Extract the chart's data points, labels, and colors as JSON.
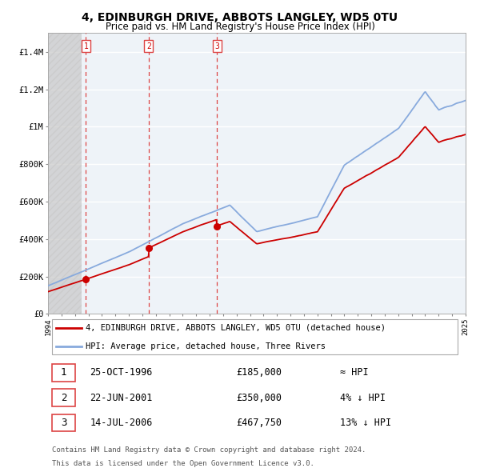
{
  "title": "4, EDINBURGH DRIVE, ABBOTS LANGLEY, WD5 0TU",
  "subtitle": "Price paid vs. HM Land Registry's House Price Index (HPI)",
  "sale_times": [
    1996.82,
    2001.47,
    2006.54
  ],
  "sale_prices": [
    185000,
    350000,
    467750
  ],
  "sale_labels": [
    "1",
    "2",
    "3"
  ],
  "legend_house": "4, EDINBURGH DRIVE, ABBOTS LANGLEY, WD5 0TU (detached house)",
  "legend_hpi": "HPI: Average price, detached house, Three Rivers",
  "table_rows": [
    [
      "1",
      "25-OCT-1996",
      "£185,000",
      "≈ HPI"
    ],
    [
      "2",
      "22-JUN-2001",
      "£350,000",
      "4% ↓ HPI"
    ],
    [
      "3",
      "14-JUL-2006",
      "£467,750",
      "13% ↓ HPI"
    ]
  ],
  "footnote1": "Contains HM Land Registry data © Crown copyright and database right 2024.",
  "footnote2": "This data is licensed under the Open Government Licence v3.0.",
  "house_color": "#cc0000",
  "hpi_color": "#88aadd",
  "vline_color": "#dd4444",
  "ylim": [
    0,
    1500000
  ],
  "yticks": [
    0,
    200000,
    400000,
    600000,
    800000,
    1000000,
    1200000,
    1400000
  ],
  "ytick_labels": [
    "£0",
    "£200K",
    "£400K",
    "£600K",
    "£800K",
    "£1M",
    "£1.2M",
    "£1.4M"
  ],
  "xstart": 1994,
  "xend": 2025,
  "grid_color": "#dddddd",
  "plot_bg": "#eef3f8",
  "hatch_color": "#c8c8c8"
}
